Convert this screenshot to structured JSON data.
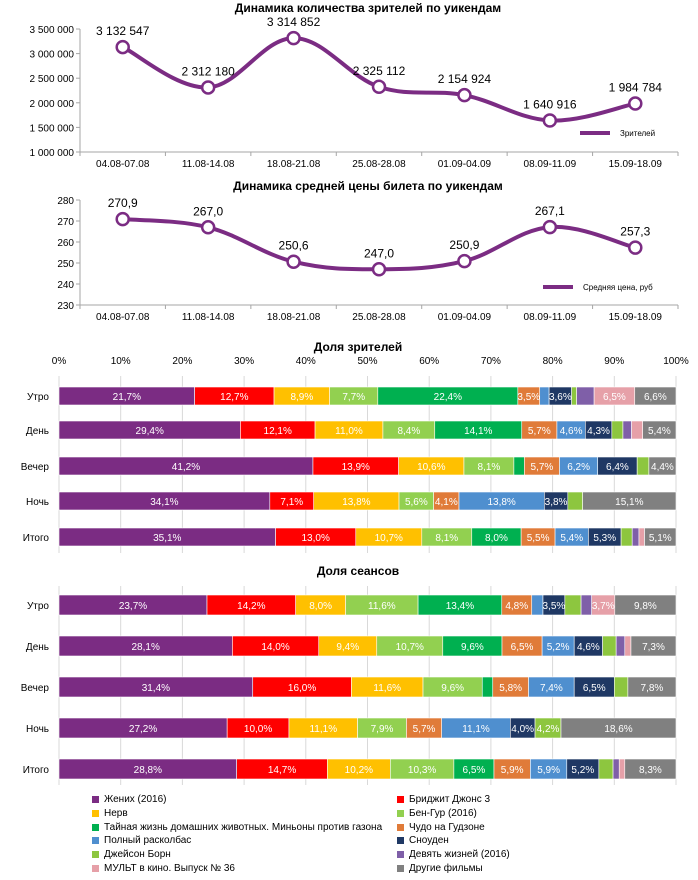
{
  "colors": {
    "line": "#7B2C83",
    "grid": "#d9d9d9",
    "axis": "#a6a6a6",
    "series": [
      "#7B2C83",
      "#FF0000",
      "#FFC000",
      "#92D050",
      "#00B050",
      "#E07B39",
      "#4F8FCF",
      "#1F3864",
      "#8DC63F",
      "#7F5FA8",
      "#E6A0A8",
      "#808080"
    ]
  },
  "chart_data": [
    {
      "type": "line",
      "title": "Динамика количества зрителей по уикендам",
      "categories": [
        "04.08-07.08",
        "11.08-14.08",
        "18.08-21.08",
        "25.08-28.08",
        "01.09-04.09",
        "08.09-11.09",
        "15.09-18.09"
      ],
      "series": [
        {
          "name": "Зрителей",
          "values": [
            3132547,
            2312180,
            3314852,
            2325112,
            2154924,
            1640916,
            1984784
          ]
        }
      ],
      "data_labels": [
        "3 132 547",
        "2 312 180",
        "3 314 852",
        "2 325 112",
        "2 154 924",
        "1 640 916",
        "1 984 784"
      ],
      "yticks": [
        "1 000 000",
        "1 500 000",
        "2 000 000",
        "2 500 000",
        "3 000 000",
        "3 500 000"
      ],
      "ylim": [
        1000000,
        3500000
      ],
      "grid": false,
      "legend": "bottom-right"
    },
    {
      "type": "line",
      "title": "Динамика средней цены билета по уикендам",
      "categories": [
        "04.08-07.08",
        "11.08-14.08",
        "18.08-21.08",
        "25.08-28.08",
        "01.09-04.09",
        "08.09-11.09",
        "15.09-18.09"
      ],
      "series": [
        {
          "name": "Средняя цена, руб",
          "values": [
            270.9,
            267.0,
            250.6,
            247.0,
            250.9,
            267.1,
            257.3
          ]
        }
      ],
      "data_labels": [
        "270,9",
        "267,0",
        "250,6",
        "247,0",
        "250,9",
        "267,1",
        "257,3"
      ],
      "yticks": [
        "230",
        "240",
        "250",
        "260",
        "270",
        "280"
      ],
      "ylim": [
        230,
        280
      ],
      "grid": false,
      "legend": "bottom-right"
    },
    {
      "type": "bar",
      "orientation": "horizontal-stacked-100",
      "title": "Доля зрителей",
      "xticks": [
        "0%",
        "10%",
        "20%",
        "30%",
        "40%",
        "50%",
        "60%",
        "70%",
        "80%",
        "90%",
        "100%"
      ],
      "categories": [
        "Утро",
        "День",
        "Вечер",
        "Ночь",
        "Итого"
      ],
      "grid": true,
      "rows": [
        {
          "values": [
            21.7,
            12.7,
            8.9,
            7.7,
            22.4,
            3.5,
            1.5,
            3.6,
            0.8,
            2.8,
            6.5,
            6.6
          ],
          "labels": [
            "21,7%",
            "12,7%",
            "8,9%",
            "7,7%",
            "22,4%",
            "3,5%",
            "",
            "3,6%",
            "",
            "",
            "6,5%",
            "6,6%"
          ]
        },
        {
          "values": [
            29.4,
            12.1,
            11.0,
            8.4,
            14.1,
            5.7,
            4.6,
            4.3,
            1.8,
            1.4,
            1.8,
            5.4
          ],
          "labels": [
            "29,4%",
            "12,1%",
            "11,0%",
            "8,4%",
            "14,1%",
            "5,7%",
            "4,6%",
            "4,3%",
            "",
            "",
            "",
            "5,4%"
          ]
        },
        {
          "values": [
            41.2,
            13.9,
            10.6,
            8.1,
            1.7,
            5.7,
            6.2,
            6.4,
            1.9,
            0.0,
            0.0,
            4.4
          ],
          "labels": [
            "41,2%",
            "13,9%",
            "10,6%",
            "8,1%",
            "",
            "5,7%",
            "6,2%",
            "6,4%",
            "",
            "",
            "",
            "4,4%"
          ]
        },
        {
          "values": [
            34.1,
            7.1,
            13.8,
            5.6,
            0.0,
            4.1,
            13.8,
            3.8,
            2.4,
            0.0,
            0.0,
            15.1
          ],
          "labels": [
            "34,1%",
            "7,1%",
            "13,8%",
            "5,6%",
            "",
            "4,1%",
            "13,8%",
            "3,8%",
            "",
            "",
            "",
            "15,1%"
          ]
        },
        {
          "values": [
            35.1,
            13.0,
            10.7,
            8.1,
            8.0,
            5.5,
            5.4,
            5.3,
            1.8,
            1.1,
            0.9,
            5.1
          ],
          "labels": [
            "35,1%",
            "13,0%",
            "10,7%",
            "8,1%",
            "8,0%",
            "5,5%",
            "5,4%",
            "5,3%",
            "",
            "",
            "",
            "5,1%"
          ]
        }
      ]
    },
    {
      "type": "bar",
      "orientation": "horizontal-stacked-100",
      "title": "Доля сеансов",
      "categories": [
        "Утро",
        "День",
        "Вечер",
        "Ночь",
        "Итого"
      ],
      "grid": true,
      "rows": [
        {
          "values": [
            23.7,
            14.2,
            8.0,
            11.6,
            13.4,
            4.8,
            1.8,
            3.5,
            2.6,
            1.7,
            3.7,
            9.8
          ],
          "labels": [
            "23,7%",
            "14,2%",
            "8,0%",
            "11,6%",
            "13,4%",
            "4,8%",
            "",
            "3,5%",
            "",
            "",
            "3,7%",
            "9,8%"
          ]
        },
        {
          "values": [
            28.1,
            14.0,
            9.4,
            10.7,
            9.6,
            6.5,
            5.2,
            4.6,
            2.2,
            1.4,
            1.0,
            7.3
          ],
          "labels": [
            "28,1%",
            "14,0%",
            "9,4%",
            "10,7%",
            "9,6%",
            "6,5%",
            "5,2%",
            "4,6%",
            "",
            "",
            "",
            "7,3%"
          ]
        },
        {
          "values": [
            31.4,
            16.0,
            11.6,
            9.6,
            1.7,
            5.8,
            7.4,
            6.5,
            2.2,
            0.0,
            0.0,
            7.8
          ],
          "labels": [
            "31,4%",
            "16,0%",
            "11,6%",
            "9,6%",
            "",
            "5,8%",
            "7,4%",
            "6,5%",
            "",
            "",
            "",
            "7,8%"
          ]
        },
        {
          "values": [
            27.2,
            10.0,
            11.1,
            7.9,
            0.0,
            5.7,
            11.1,
            4.0,
            4.2,
            0.0,
            0.0,
            18.6
          ],
          "labels": [
            "27,2%",
            "10,0%",
            "11,1%",
            "7,9%",
            "",
            "5,7%",
            "11,1%",
            "4,0%",
            "4,2%",
            "",
            "",
            "18,6%"
          ]
        },
        {
          "values": [
            28.8,
            14.7,
            10.2,
            10.3,
            6.5,
            5.9,
            5.9,
            5.2,
            2.3,
            1.0,
            0.9,
            8.3
          ],
          "labels": [
            "28,8%",
            "14,7%",
            "10,2%",
            "10,3%",
            "6,5%",
            "5,9%",
            "5,9%",
            "5,2%",
            "",
            "",
            "",
            "8,3%"
          ]
        }
      ]
    }
  ],
  "legend": [
    "Жених (2016)",
    "Бриджит Джонс 3",
    "Нерв",
    "Бен-Гур (2016)",
    "Тайная жизнь домашних животных. Миньоны против газона",
    "Чудо на Гудзоне",
    "Полный расколбас",
    "Сноуден",
    "Джейсон Борн",
    "Девять жизней (2016)",
    "МУЛЬТ в кино. Выпуск № 36",
    "Другие фильмы"
  ]
}
